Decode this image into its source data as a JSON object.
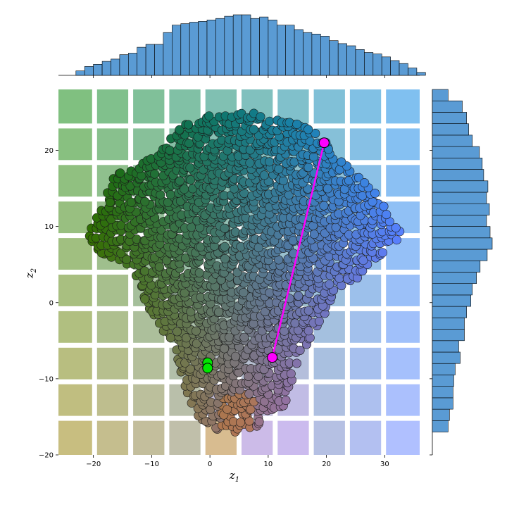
{
  "chart_data": {
    "type": "scatter",
    "title": "",
    "xlabel": "z",
    "xlabel_sub": "1",
    "ylabel": "z",
    "ylabel_sub": "2",
    "xlim": [
      -26,
      36
    ],
    "ylim": [
      -20,
      28
    ],
    "xticks": [
      -20,
      -10,
      0,
      10,
      20,
      30
    ],
    "yticks": [
      -20,
      -10,
      0,
      10,
      20
    ],
    "grid": "background tiles",
    "marginal_x_histogram": {
      "bin_start": -23,
      "bin_width": 1.5,
      "counts": [
        6,
        12,
        15,
        19,
        22,
        28,
        30,
        38,
        42,
        42,
        58,
        68,
        70,
        72,
        73,
        75,
        77,
        80,
        82,
        82,
        77,
        79,
        75,
        68,
        68,
        62,
        58,
        56,
        53,
        47,
        43,
        40,
        35,
        31,
        29,
        25,
        20,
        16,
        10,
        4
      ]
    },
    "marginal_y_histogram": {
      "bin_start": -17,
      "bin_width": 1.5,
      "counts": [
        22,
        24,
        29,
        29,
        30,
        32,
        39,
        37,
        45,
        45,
        48,
        54,
        56,
        62,
        67,
        77,
        84,
        81,
        76,
        80,
        76,
        78,
        72,
        70,
        66,
        56,
        51,
        48,
        42,
        22
      ]
    },
    "highlight_segment": {
      "color": "#ff00ff",
      "from": [
        10.7,
        -7.2
      ],
      "to": [
        19.6,
        21.0
      ]
    },
    "highlight_points": [
      {
        "x": 10.7,
        "y": -7.2,
        "color": "#ff00ff"
      },
      {
        "x": 19.6,
        "y": 21.0,
        "color": "#ff00ff"
      },
      {
        "x": -0.4,
        "y": -7.9,
        "color": "#00e600"
      },
      {
        "x": -0.4,
        "y": -8.6,
        "color": "#00e600"
      }
    ],
    "colors": {
      "hist_fill": "#5a9bd4",
      "point_top_left": "#006400",
      "point_right": "#1e90ff",
      "point_bottom": "#b266ff",
      "point_bottom_left": "#808000"
    }
  }
}
